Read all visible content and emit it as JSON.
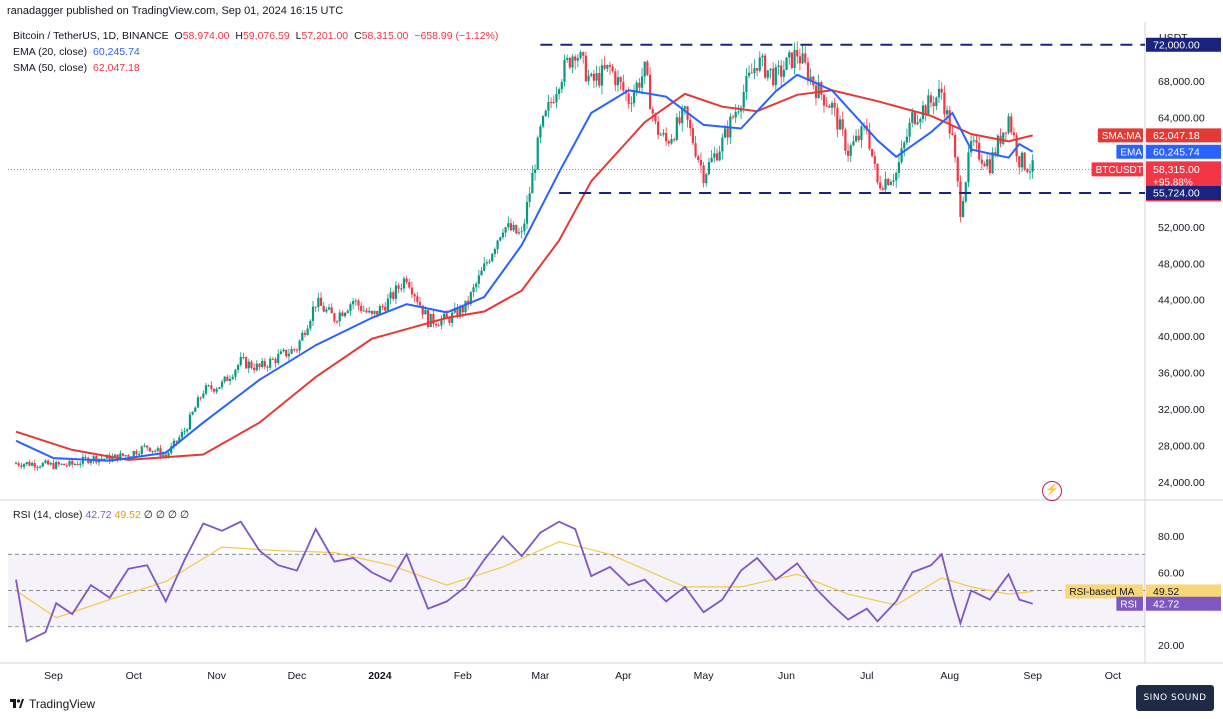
{
  "header": {
    "published": "ranadagger published on TradingView.com, Sep 01, 2024 16:15 UTC"
  },
  "legend": {
    "symbol": "Bitcoin / TetherUS, 1D, BINANCE",
    "open_label": "O",
    "open": "58,974.00",
    "high_label": "H",
    "high": "59,076.59",
    "low_label": "L",
    "low": "57,201.00",
    "close_label": "C",
    "close": "58,315.00",
    "change": "−658.99 (−1.12%)",
    "ema_label": "EMA (20, close)",
    "ema_value": "60,245.74",
    "sma_label": "SMA (50, close)",
    "sma_value": "62,047.18"
  },
  "rsi_legend": {
    "label": "RSI (14, close)",
    "rsi": "42.72",
    "rsi_ma": "49.52",
    "extras": "∅  ∅  ∅  ∅"
  },
  "axis": {
    "currency": "USDT",
    "price_ticks": [
      "72,000.00",
      "68,000.00",
      "64,000.00",
      "52,000.00",
      "48,000.00",
      "44,000.00",
      "40,000.00",
      "36,000.00",
      "32,000.00",
      "28,000.00",
      "24,000.00"
    ],
    "rsi_ticks": [
      "80.00",
      "60.00",
      "20.00"
    ],
    "months": [
      "Sep",
      "Oct",
      "Nov",
      "Dec",
      "2024",
      "Feb",
      "Mar",
      "Apr",
      "May",
      "Jun",
      "Jul",
      "Aug",
      "Sep",
      "Oct"
    ]
  },
  "price_labels": {
    "resistance": "72,000.00",
    "sma_tag": "SMA:MA",
    "sma_value": "62,047.18",
    "ema_tag": "EMA",
    "ema_value": "60,245.74",
    "symbol_tag": "BTCUSDT",
    "last_price": "58,315.00",
    "pct": "+95.88%",
    "countdown": "07:44:26",
    "support": "55,724.00"
  },
  "rsi_labels": {
    "ma_tag": "RSI-based MA",
    "ma_value": "49.52",
    "rsi_tag": "RSI",
    "rsi_value": "42.72"
  },
  "footer": {
    "brand": "TradingView"
  },
  "watermark": {
    "text": "SINO SOUND"
  },
  "colors": {
    "up": "#089981",
    "down": "#f23645",
    "ema": "#2962ff",
    "sma": "#e53935",
    "rsi": "#7e57c2",
    "rsi_ma": "#f2c94c",
    "level": "#1a237e"
  },
  "chart_data": {
    "type": "candlestick",
    "levels": {
      "resistance": 72000,
      "support": 55724,
      "last": 58315
    },
    "price_range": [
      22000,
      74500
    ],
    "rsi_range": [
      10,
      100
    ],
    "rsi_band": [
      30,
      70
    ],
    "close_path": [
      [
        "2023-08-18",
        26050
      ],
      [
        "2023-08-25",
        26000
      ],
      [
        "2023-09-01",
        25800
      ],
      [
        "2023-09-08",
        25900
      ],
      [
        "2023-09-15",
        26600
      ],
      [
        "2023-09-22",
        26550
      ],
      [
        "2023-09-29",
        27000
      ],
      [
        "2023-10-06",
        27900
      ],
      [
        "2023-10-13",
        26850
      ],
      [
        "2023-10-20",
        29600
      ],
      [
        "2023-10-27",
        34000
      ],
      [
        "2023-11-03",
        34700
      ],
      [
        "2023-11-10",
        37200
      ],
      [
        "2023-11-17",
        36500
      ],
      [
        "2023-11-24",
        37700
      ],
      [
        "2023-12-01",
        38700
      ],
      [
        "2023-12-08",
        43700
      ],
      [
        "2023-12-15",
        42000
      ],
      [
        "2023-12-22",
        43900
      ],
      [
        "2023-12-29",
        42100
      ],
      [
        "2024-01-05",
        44100
      ],
      [
        "2024-01-11",
        46600
      ],
      [
        "2024-01-19",
        41700
      ],
      [
        "2024-01-26",
        41800
      ],
      [
        "2024-02-02",
        43200
      ],
      [
        "2024-02-09",
        47500
      ],
      [
        "2024-02-16",
        52100
      ],
      [
        "2024-02-23",
        51000
      ],
      [
        "2024-03-01",
        62400
      ],
      [
        "2024-03-08",
        68300
      ],
      [
        "2024-03-14",
        71500
      ],
      [
        "2024-03-20",
        67800
      ],
      [
        "2024-03-27",
        69400
      ],
      [
        "2024-04-03",
        66000
      ],
      [
        "2024-04-09",
        69100
      ],
      [
        "2024-04-13",
        63000
      ],
      [
        "2024-04-17",
        61300
      ],
      [
        "2024-04-24",
        64300
      ],
      [
        "2024-05-01",
        57800
      ],
      [
        "2024-05-08",
        61300
      ],
      [
        "2024-05-15",
        66200
      ],
      [
        "2024-05-21",
        70200
      ],
      [
        "2024-05-28",
        68400
      ],
      [
        "2024-06-05",
        71100
      ],
      [
        "2024-06-12",
        67300
      ],
      [
        "2024-06-18",
        65200
      ],
      [
        "2024-06-24",
        60300
      ],
      [
        "2024-07-01",
        62900
      ],
      [
        "2024-07-05",
        56700
      ],
      [
        "2024-07-12",
        57900
      ],
      [
        "2024-07-18",
        64000
      ],
      [
        "2024-07-25",
        65700
      ],
      [
        "2024-07-29",
        66800
      ],
      [
        "2024-08-02",
        61500
      ],
      [
        "2024-08-05",
        54000
      ],
      [
        "2024-08-09",
        60900
      ],
      [
        "2024-08-16",
        58900
      ],
      [
        "2024-08-23",
        64100
      ],
      [
        "2024-08-27",
        59400
      ],
      [
        "2024-09-01",
        58315
      ]
    ],
    "ema20_path": [
      [
        "2023-08-18",
        28500
      ],
      [
        "2023-09-01",
        26600
      ],
      [
        "2023-09-22",
        26300
      ],
      [
        "2023-10-13",
        27200
      ],
      [
        "2023-10-27",
        30500
      ],
      [
        "2023-11-17",
        35200
      ],
      [
        "2023-12-08",
        39000
      ],
      [
        "2023-12-29",
        42000
      ],
      [
        "2024-01-11",
        43500
      ],
      [
        "2024-01-26",
        42600
      ],
      [
        "2024-02-09",
        44300
      ],
      [
        "2024-02-23",
        50000
      ],
      [
        "2024-03-08",
        58000
      ],
      [
        "2024-03-20",
        64500
      ],
      [
        "2024-04-03",
        67000
      ],
      [
        "2024-04-17",
        66300
      ],
      [
        "2024-05-01",
        63200
      ],
      [
        "2024-05-15",
        62800
      ],
      [
        "2024-05-28",
        66900
      ],
      [
        "2024-06-05",
        68700
      ],
      [
        "2024-06-18",
        67000
      ],
      [
        "2024-07-05",
        61500
      ],
      [
        "2024-07-12",
        59700
      ],
      [
        "2024-07-25",
        62400
      ],
      [
        "2024-08-02",
        64500
      ],
      [
        "2024-08-09",
        60500
      ],
      [
        "2024-08-23",
        59600
      ],
      [
        "2024-08-27",
        61100
      ],
      [
        "2024-09-01",
        60245.74
      ]
    ],
    "sma50_path": [
      [
        "2023-08-18",
        29500
      ],
      [
        "2023-09-08",
        27500
      ],
      [
        "2023-09-29",
        26400
      ],
      [
        "2023-10-27",
        27000
      ],
      [
        "2023-11-17",
        30500
      ],
      [
        "2023-12-08",
        35500
      ],
      [
        "2023-12-29",
        39700
      ],
      [
        "2024-01-26",
        42000
      ],
      [
        "2024-02-09",
        42700
      ],
      [
        "2024-02-23",
        45000
      ],
      [
        "2024-03-08",
        50500
      ],
      [
        "2024-03-20",
        57000
      ],
      [
        "2024-04-09",
        63500
      ],
      [
        "2024-04-24",
        66600
      ],
      [
        "2024-05-08",
        65200
      ],
      [
        "2024-05-21",
        64700
      ],
      [
        "2024-06-05",
        66500
      ],
      [
        "2024-06-18",
        67000
      ],
      [
        "2024-07-05",
        65800
      ],
      [
        "2024-07-25",
        64200
      ],
      [
        "2024-08-09",
        62200
      ],
      [
        "2024-08-23",
        61400
      ],
      [
        "2024-09-01",
        62047.18
      ]
    ],
    "rsi_path": [
      [
        "2023-08-18",
        56
      ],
      [
        "2023-08-22",
        22
      ],
      [
        "2023-08-29",
        27
      ],
      [
        "2023-09-02",
        43
      ],
      [
        "2023-09-08",
        37
      ],
      [
        "2023-09-15",
        53
      ],
      [
        "2023-09-22",
        46
      ],
      [
        "2023-09-29",
        62
      ],
      [
        "2023-10-06",
        64
      ],
      [
        "2023-10-13",
        44
      ],
      [
        "2023-10-20",
        67
      ],
      [
        "2023-10-27",
        87
      ],
      [
        "2023-11-03",
        83
      ],
      [
        "2023-11-10",
        88
      ],
      [
        "2023-11-17",
        72
      ],
      [
        "2023-11-24",
        64
      ],
      [
        "2023-12-01",
        61
      ],
      [
        "2023-12-08",
        84
      ],
      [
        "2023-12-15",
        66
      ],
      [
        "2023-12-22",
        68
      ],
      [
        "2023-12-29",
        60
      ],
      [
        "2024-01-05",
        55
      ],
      [
        "2024-01-11",
        70
      ],
      [
        "2024-01-19",
        40
      ],
      [
        "2024-01-26",
        44
      ],
      [
        "2024-02-02",
        52
      ],
      [
        "2024-02-09",
        67
      ],
      [
        "2024-02-16",
        80
      ],
      [
        "2024-02-23",
        69
      ],
      [
        "2024-03-01",
        82
      ],
      [
        "2024-03-08",
        88
      ],
      [
        "2024-03-14",
        84
      ],
      [
        "2024-03-20",
        58
      ],
      [
        "2024-03-27",
        63
      ],
      [
        "2024-04-03",
        53
      ],
      [
        "2024-04-09",
        56
      ],
      [
        "2024-04-17",
        44
      ],
      [
        "2024-04-24",
        52
      ],
      [
        "2024-05-01",
        38
      ],
      [
        "2024-05-08",
        45
      ],
      [
        "2024-05-15",
        61
      ],
      [
        "2024-05-21",
        68
      ],
      [
        "2024-05-28",
        56
      ],
      [
        "2024-06-05",
        65
      ],
      [
        "2024-06-12",
        51
      ],
      [
        "2024-06-18",
        42
      ],
      [
        "2024-06-24",
        34
      ],
      [
        "2024-07-01",
        40
      ],
      [
        "2024-07-05",
        33
      ],
      [
        "2024-07-12",
        44
      ],
      [
        "2024-07-18",
        60
      ],
      [
        "2024-07-25",
        64
      ],
      [
        "2024-07-29",
        70
      ],
      [
        "2024-08-02",
        47
      ],
      [
        "2024-08-05",
        32
      ],
      [
        "2024-08-09",
        50
      ],
      [
        "2024-08-16",
        45
      ],
      [
        "2024-08-23",
        59
      ],
      [
        "2024-08-27",
        45
      ],
      [
        "2024-09-01",
        42.72
      ]
    ],
    "rsi_ma_path": [
      [
        "2023-08-18",
        50
      ],
      [
        "2023-09-02",
        35
      ],
      [
        "2023-09-22",
        45
      ],
      [
        "2023-10-13",
        55
      ],
      [
        "2023-11-03",
        74
      ],
      [
        "2023-11-24",
        72
      ],
      [
        "2023-12-15",
        71
      ],
      [
        "2024-01-05",
        64
      ],
      [
        "2024-01-26",
        53
      ],
      [
        "2024-02-16",
        63
      ],
      [
        "2024-03-08",
        77
      ],
      [
        "2024-03-27",
        70
      ],
      [
        "2024-04-24",
        52
      ],
      [
        "2024-05-15",
        52
      ],
      [
        "2024-06-05",
        59
      ],
      [
        "2024-06-24",
        48
      ],
      [
        "2024-07-12",
        42
      ],
      [
        "2024-07-29",
        57
      ],
      [
        "2024-08-09",
        52
      ],
      [
        "2024-08-23",
        48
      ],
      [
        "2024-09-01",
        49.52
      ]
    ]
  }
}
